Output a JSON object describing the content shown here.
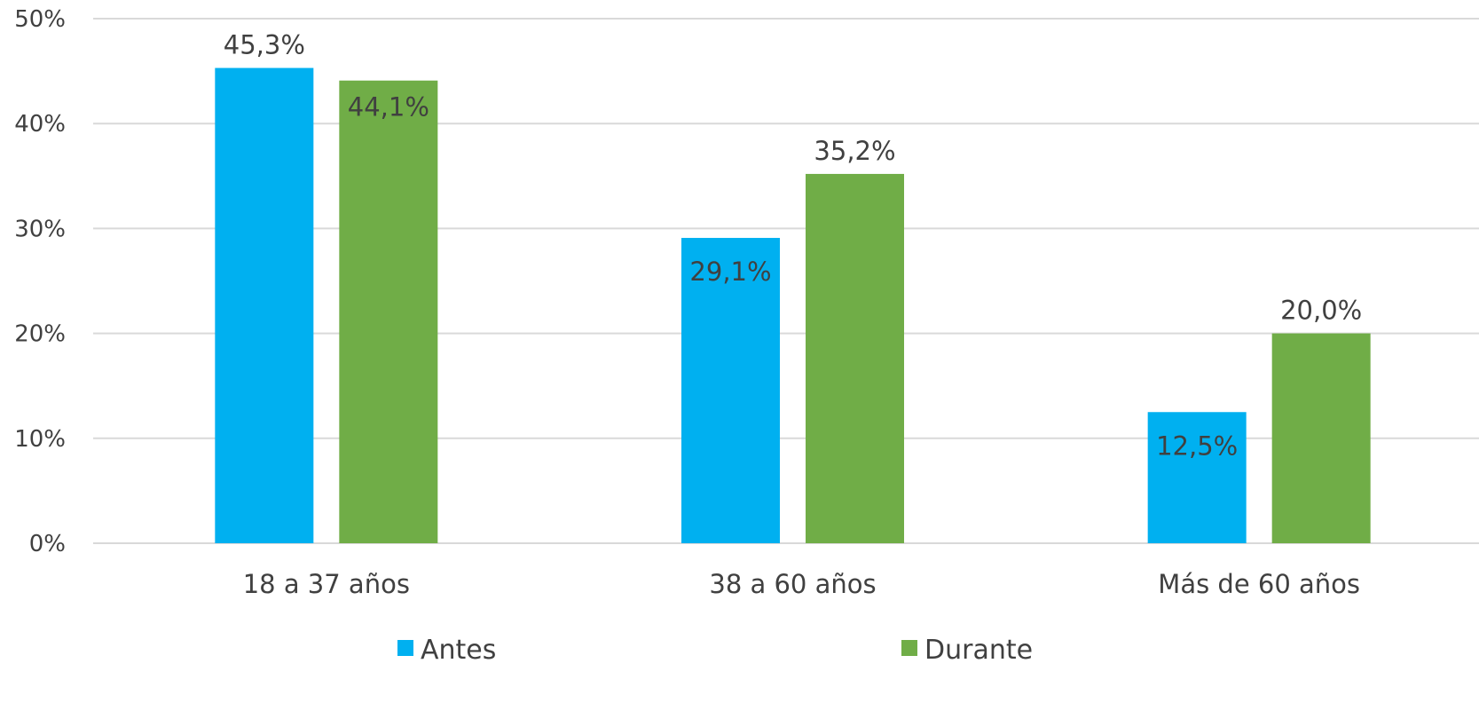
{
  "chart_data": {
    "type": "bar",
    "categories": [
      "18 a 37 años",
      "38 a 60 años",
      "Más de 60 años"
    ],
    "series": [
      {
        "name": "Antes",
        "values": [
          45.3,
          29.1,
          12.5
        ],
        "labels": [
          "45,3%",
          "29,1%",
          "12,5%"
        ],
        "color": "#00b0f0"
      },
      {
        "name": "Durante",
        "values": [
          44.1,
          35.2,
          20.0
        ],
        "labels": [
          "44,1%",
          "35,2%",
          "20,0%"
        ],
        "color": "#70ad47"
      }
    ],
    "ylim": [
      0,
      50
    ],
    "yticks": [
      0,
      10,
      20,
      30,
      40,
      50
    ],
    "ytick_labels": [
      "0%",
      "10%",
      "20%",
      "30%",
      "40%",
      "50%"
    ],
    "grid": true,
    "legend_position": "bottom",
    "title": "",
    "xlabel": "",
    "ylabel": ""
  }
}
